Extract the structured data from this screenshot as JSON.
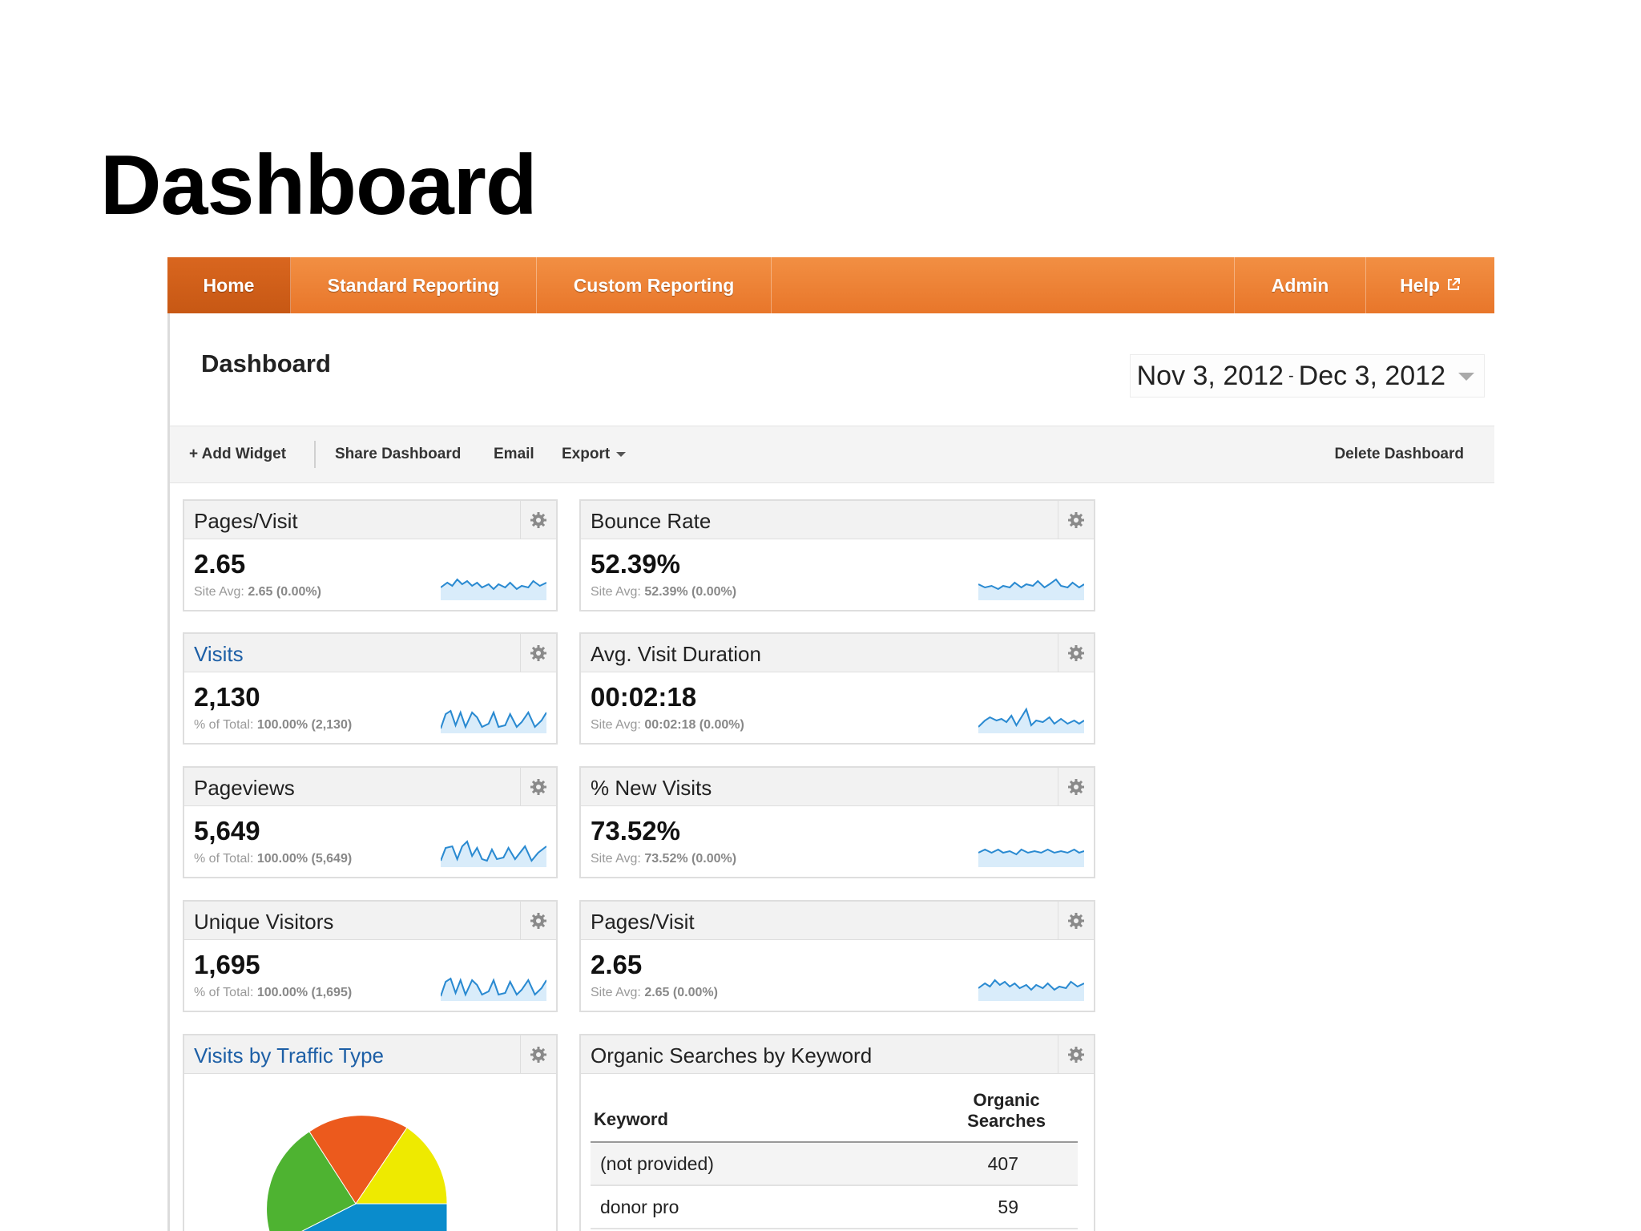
{
  "slide": {
    "title": "Dashboard"
  },
  "nav": {
    "home": "Home",
    "standard_reporting": "Standard Reporting",
    "custom_reporting": "Custom Reporting",
    "admin": "Admin",
    "help": "Help"
  },
  "header": {
    "title": "Dashboard",
    "date_start": "Nov 3, 2012",
    "date_sep": "-",
    "date_end": "Dec 3, 2012"
  },
  "toolbar": {
    "add_widget": "+ Add Widget",
    "share_dashboard": "Share Dashboard",
    "email": "Email",
    "export": "Export",
    "delete_dashboard": "Delete Dashboard"
  },
  "widgets": [
    {
      "title": "Pages/Visit",
      "value": "2.65",
      "sub_label": "Site Avg:",
      "sub_value": "2.65 (0.00%)",
      "link": false
    },
    {
      "title": "Bounce Rate",
      "value": "52.39%",
      "sub_label": "Site Avg:",
      "sub_value": "52.39% (0.00%)",
      "link": false
    },
    {
      "title": "Visits",
      "value": "2,130",
      "sub_label": "% of Total:",
      "sub_value": "100.00% (2,130)",
      "link": true
    },
    {
      "title": "Avg. Visit Duration",
      "value": "00:02:18",
      "sub_label": "Site Avg:",
      "sub_value": "00:02:18 (0.00%)",
      "link": false
    },
    {
      "title": "Pageviews",
      "value": "5,649",
      "sub_label": "% of Total:",
      "sub_value": "100.00% (5,649)",
      "link": false
    },
    {
      "title": "% New Visits",
      "value": "73.52%",
      "sub_label": "Site Avg:",
      "sub_value": "73.52% (0.00%)",
      "link": false
    },
    {
      "title": "Unique Visitors",
      "value": "1,695",
      "sub_label": "% of Total:",
      "sub_value": "100.00% (1,695)",
      "link": false
    },
    {
      "title": "Pages/Visit",
      "value": "2.65",
      "sub_label": "Site Avg:",
      "sub_value": "2.65 (0.00%)",
      "link": false
    }
  ],
  "traffic_widget": {
    "title": "Visits by Traffic Type"
  },
  "keyword_widget": {
    "title": "Organic Searches by Keyword",
    "col_keyword": "Keyword",
    "col_searches_1": "Organic",
    "col_searches_2": "Searches",
    "rows": [
      {
        "keyword": "(not provided)",
        "searches": "407"
      },
      {
        "keyword": "donor pro",
        "searches": "59"
      }
    ]
  },
  "colors": {
    "nav_orange": "#ee8335",
    "sparkline": "#2a8ad1",
    "pie_orange": "#ec5a1d",
    "pie_yellow": "#eeea00",
    "pie_green": "#4eb331",
    "pie_blue": "#0a8ccc"
  },
  "icons": {
    "gear": "gear-icon",
    "external": "external-link-icon",
    "dropdown": "chevron-down-icon"
  }
}
